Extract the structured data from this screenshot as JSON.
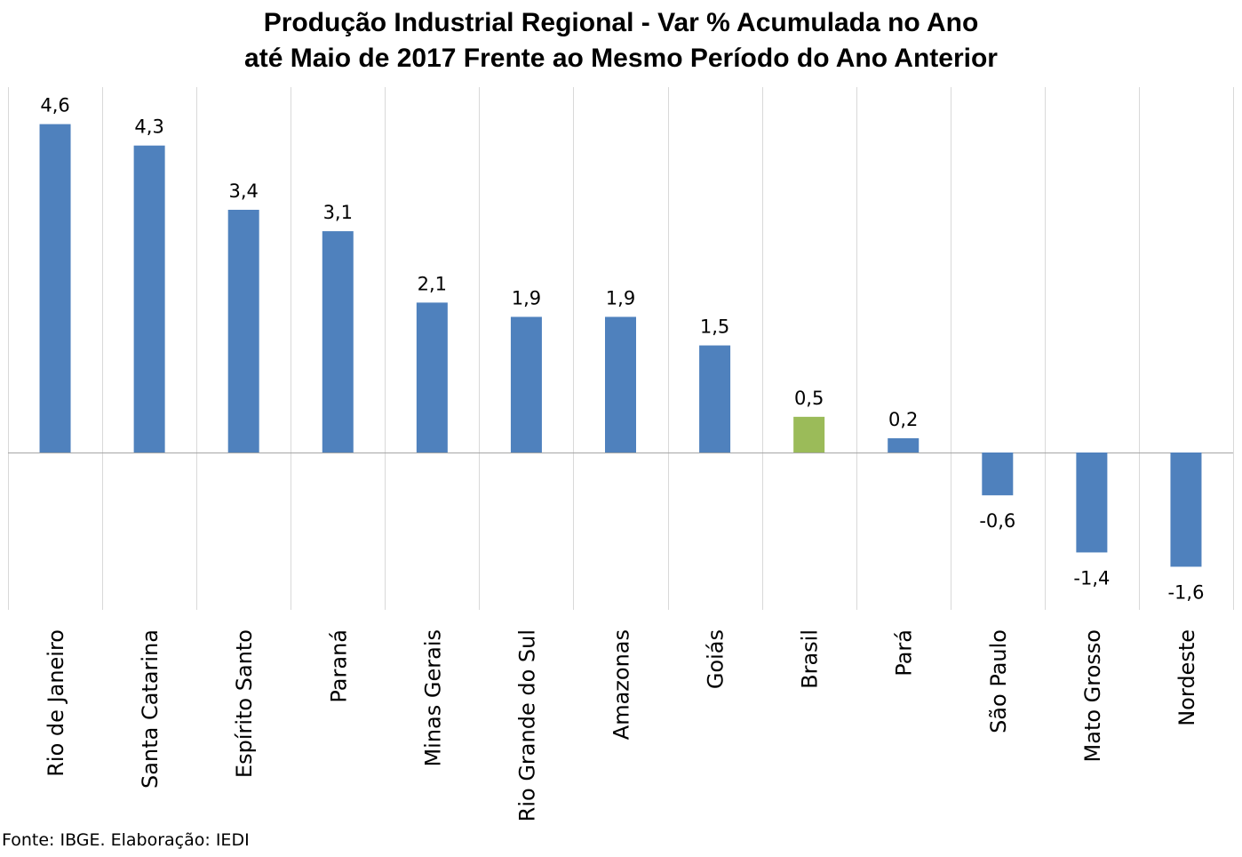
{
  "chart_data": {
    "type": "bar",
    "title": "Produção Industrial Regional - Var % Acumulada no Ano",
    "subtitle": "até Maio de 2017 Frente ao Mesmo Período do Ano Anterior",
    "categories": [
      "Rio de Janeiro",
      "Santa Catarina",
      "Espírito Santo",
      "Paraná",
      "Minas Gerais",
      "Rio Grande do Sul",
      "Amazonas",
      "Goiás",
      "Brasil",
      "Pará",
      "São Paulo",
      "Mato Grosso",
      "Nordeste"
    ],
    "values": [
      4.6,
      4.3,
      3.4,
      3.1,
      2.1,
      1.9,
      1.9,
      1.5,
      0.5,
      0.2,
      -0.6,
      -1.4,
      -1.6
    ],
    "value_labels": [
      "4,6",
      "4,3",
      "3,4",
      "3,1",
      "2,1",
      "1,9",
      "1,9",
      "1,5",
      "0,5",
      "0,2",
      "-0,6",
      "-1,4",
      "-1,6"
    ],
    "colors": {
      "default": "#4F81BD",
      "highlight": "#9BBB59",
      "grid": "#D9D9D9",
      "zero_line": "#A6A6A6"
    },
    "highlight_category": "Brasil",
    "ylim": [
      -2.2,
      5.1
    ],
    "grid": "vertical category separators",
    "legend": "none",
    "xlabel": "",
    "ylabel": ""
  },
  "source_note": "Fonte: IBGE. Elaboração: IEDI"
}
